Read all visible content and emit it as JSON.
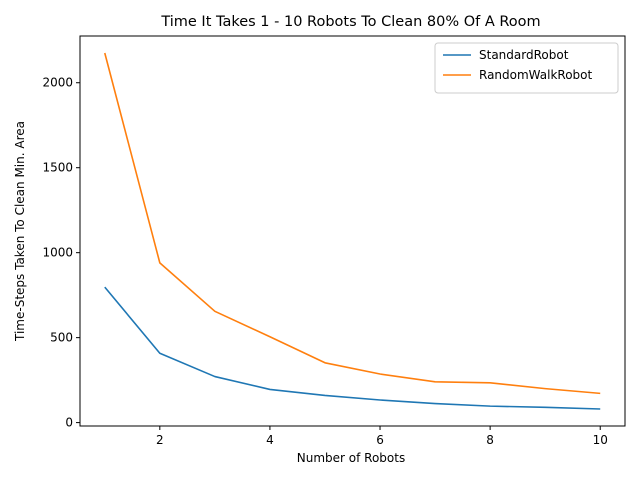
{
  "chart_data": {
    "type": "line",
    "title": "Time It Takes 1 - 10 Robots To Clean 80% Of A Room",
    "xlabel": "Number of Robots",
    "ylabel": "Time-Steps Taken To Clean Min. Area",
    "x": [
      1,
      2,
      3,
      4,
      5,
      6,
      7,
      8,
      9,
      10
    ],
    "xlim": [
      0.55,
      10.45
    ],
    "ylim": [
      -20,
      2275
    ],
    "xticks": [
      2,
      4,
      6,
      8,
      10
    ],
    "yticks": [
      0,
      500,
      1000,
      1500,
      2000
    ],
    "legend_position": "top-right",
    "grid": false,
    "series": [
      {
        "name": "StandardRobot",
        "color": "#1f77b4",
        "values": [
          797,
          408,
          271,
          195,
          160,
          133,
          112,
          97,
          90,
          80
        ]
      },
      {
        "name": "RandomWalkRobot",
        "color": "#ff7f0e",
        "values": [
          2175,
          940,
          655,
          505,
          352,
          286,
          240,
          234,
          200,
          172
        ]
      }
    ]
  }
}
